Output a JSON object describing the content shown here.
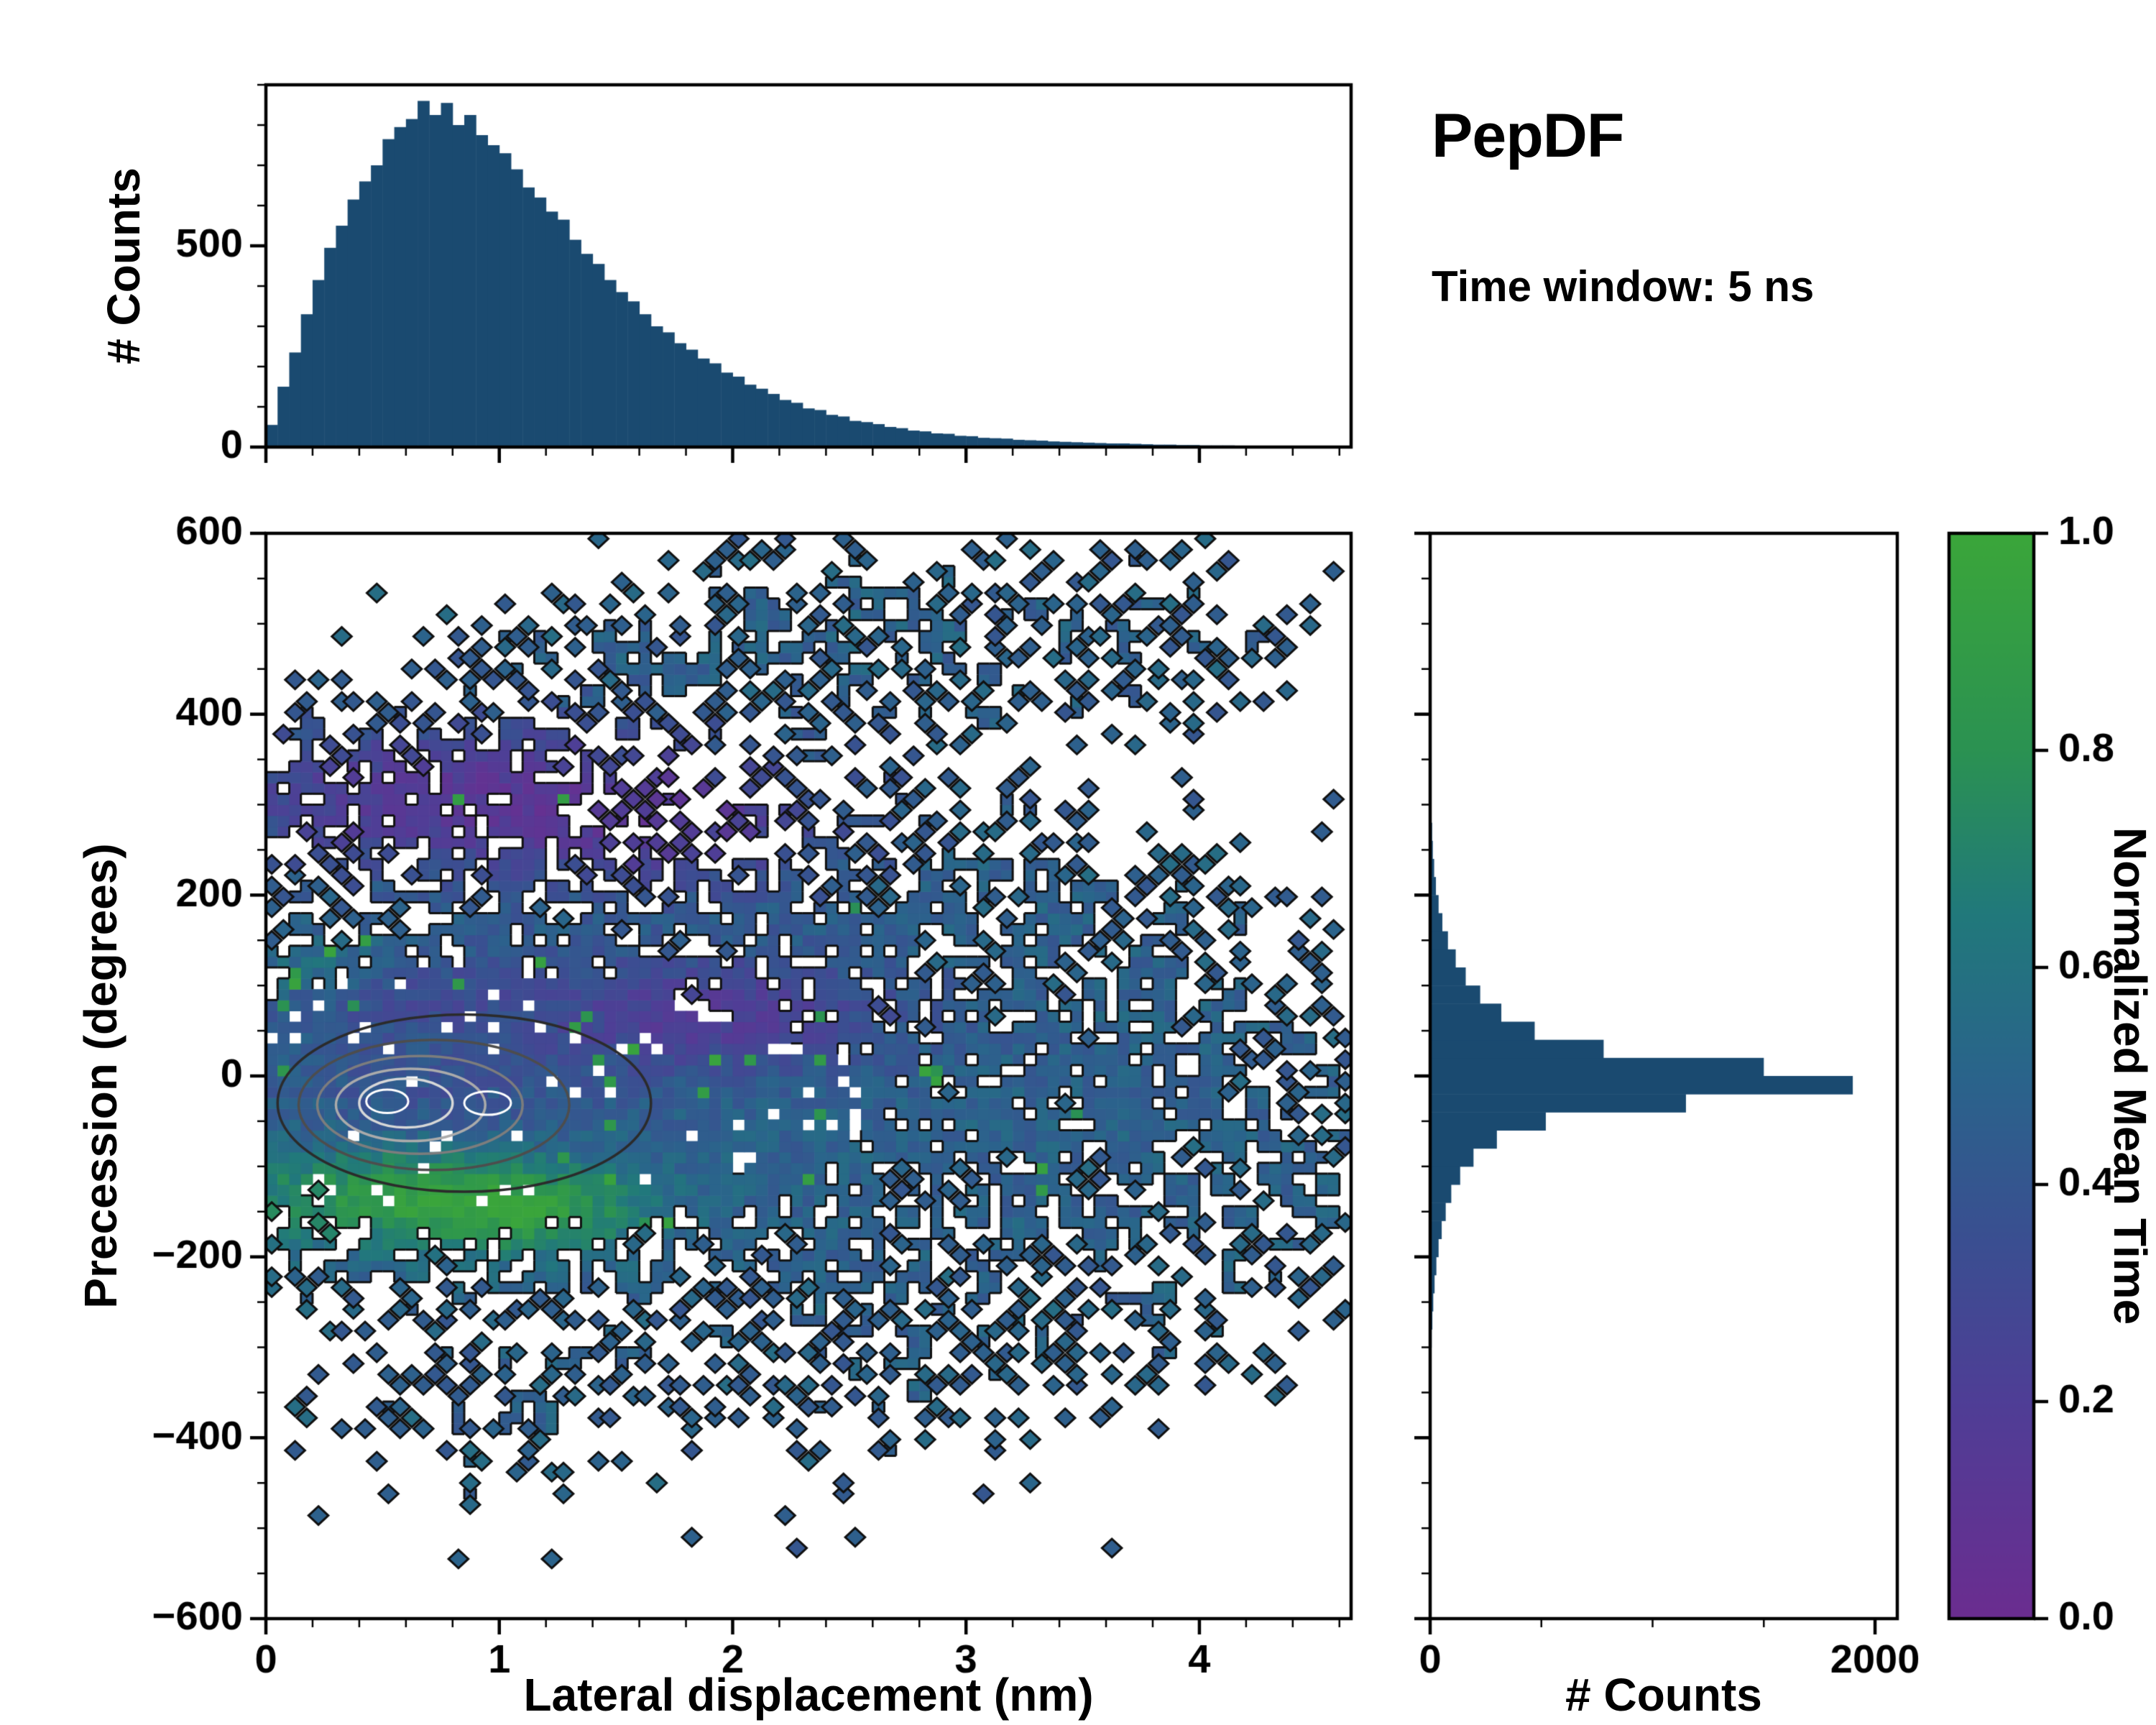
{
  "title": {
    "main": "PepDF",
    "subtitle": "Time window: 5 ns"
  },
  "colors": {
    "background": "#ffffff",
    "axis": "#000000",
    "hist_fill": "#1a4a70",
    "text": "#000000"
  },
  "colormap": {
    "label": "Normalized Mean Time",
    "ticks": [
      0,
      0.2,
      0.4,
      0.6,
      0.8,
      1
    ],
    "stops": [
      [
        0,
        "#6b2d90"
      ],
      [
        0.2,
        "#4f3e96"
      ],
      [
        0.35,
        "#3a4f91"
      ],
      [
        0.5,
        "#2a648b"
      ],
      [
        0.65,
        "#21797b"
      ],
      [
        0.8,
        "#2b9252"
      ],
      [
        1,
        "#3ba63a"
      ]
    ]
  },
  "chart_data": [
    {
      "id": "top_histogram",
      "type": "bar",
      "role": "marginal-x",
      "ylabel": "# Counts",
      "xlim": [
        0,
        4.65
      ],
      "ylim": [
        0,
        900
      ],
      "xticks": [
        0,
        1,
        2,
        3,
        4
      ],
      "yticks": [
        0,
        500
      ],
      "x_minor_step": 0.2,
      "y_minor_step": 100,
      "bin_start": 0,
      "bin_width": 0.05,
      "values": [
        55,
        150,
        235,
        330,
        415,
        495,
        550,
        615,
        660,
        700,
        765,
        795,
        815,
        860,
        825,
        855,
        800,
        825,
        775,
        750,
        730,
        690,
        645,
        620,
        585,
        565,
        515,
        480,
        455,
        415,
        385,
        362,
        330,
        300,
        285,
        258,
        242,
        220,
        208,
        185,
        175,
        155,
        145,
        132,
        117,
        110,
        96,
        92,
        80,
        76,
        65,
        62,
        57,
        50,
        47,
        41,
        39,
        34,
        33,
        28,
        27,
        23,
        22,
        21,
        18,
        17,
        16,
        14,
        13,
        12,
        11,
        10,
        9,
        9,
        8,
        7,
        6,
        6,
        5,
        5,
        4,
        4,
        4,
        3,
        3,
        3,
        2,
        2,
        2,
        2,
        1,
        1,
        1
      ]
    },
    {
      "id": "joint_heatmap",
      "type": "heatmap",
      "xlabel": "Lateral displacement (nm)",
      "ylabel": "Precession (degrees)",
      "color_label": "Normalized Mean Time",
      "xlim": [
        0,
        4.65
      ],
      "ylim": [
        -600,
        600
      ],
      "xticks": [
        0,
        1,
        2,
        3,
        4
      ],
      "yticks": [
        -600,
        -400,
        -200,
        0,
        200,
        400,
        600
      ],
      "x_minor_step": 0.2,
      "y_minor_step": 50,
      "cell_dx": 0.05,
      "cell_dy": 12,
      "seed": 12,
      "base_value": 0.48,
      "noise": 0.17,
      "speckle_green_prob": 0.02,
      "noise_floor": 0.003,
      "fill_cap": 0.96,
      "clusters": [
        {
          "cx": 0.7,
          "cy": -25,
          "sx": 0.55,
          "sy": 85,
          "amp": 3.0
        },
        {
          "cx": 0.3,
          "cy": -25,
          "sx": 0.45,
          "sy": 90,
          "amp": 1.5
        },
        {
          "cx": 1.5,
          "cy": -25,
          "sx": 0.7,
          "sy": 95,
          "amp": 1.6
        },
        {
          "cx": 2.4,
          "cy": -30,
          "sx": 0.8,
          "sy": 110,
          "amp": 0.9
        },
        {
          "cx": 3.3,
          "cy": -30,
          "sx": 0.9,
          "sy": 120,
          "amp": 0.45
        },
        {
          "cx": 4.1,
          "cy": -20,
          "sx": 0.7,
          "sy": 110,
          "amp": 0.3
        },
        {
          "cx": 0.55,
          "cy": 310,
          "sx": 0.5,
          "sy": 48,
          "amp": 0.9
        },
        {
          "cx": 1.15,
          "cy": 300,
          "sx": 0.35,
          "sy": 45,
          "amp": 0.6
        },
        {
          "cx": 0.2,
          "cy": 320,
          "sx": 0.25,
          "sy": 40,
          "amp": 0.5
        },
        {
          "cx": 1.45,
          "cy": 440,
          "sx": 0.45,
          "sy": 45,
          "amp": 0.55
        },
        {
          "cx": 2.1,
          "cy": 470,
          "sx": 0.5,
          "sy": 50,
          "amp": 0.4
        },
        {
          "cx": 2.9,
          "cy": 500,
          "sx": 0.7,
          "sy": 60,
          "amp": 0.35
        },
        {
          "cx": 3.6,
          "cy": 480,
          "sx": 0.5,
          "sy": 70,
          "amp": 0.25
        },
        {
          "cx": 2.3,
          "cy": 185,
          "sx": 0.75,
          "sy": 60,
          "amp": 0.65
        },
        {
          "cx": 3.2,
          "cy": 170,
          "sx": 0.6,
          "sy": 60,
          "amp": 0.35
        },
        {
          "cx": 0.9,
          "cy": 155,
          "sx": 0.5,
          "sy": 50,
          "amp": 0.45
        },
        {
          "cx": 1.9,
          "cy": -300,
          "sx": 1.1,
          "sy": 70,
          "amp": 0.28
        },
        {
          "cx": 1.0,
          "cy": -380,
          "sx": 0.4,
          "sy": 45,
          "amp": 0.22
        },
        {
          "cx": 2.9,
          "cy": -250,
          "sx": 0.8,
          "sy": 60,
          "amp": 0.25
        },
        {
          "cx": 3.8,
          "cy": -60,
          "sx": 0.5,
          "sy": 80,
          "amp": 0.35
        },
        {
          "cx": 2.6,
          "cy": 330,
          "sx": 0.4,
          "sy": 60,
          "amp": 0.25
        }
      ],
      "value_layers": [
        {
          "cx": 1.9,
          "cy": 70,
          "sx": 0.55,
          "sy": 45,
          "dv": -0.3
        },
        {
          "cx": 0.45,
          "cy": 95,
          "sx": 0.4,
          "sy": 30,
          "dv": -0.2
        },
        {
          "cx": 0.75,
          "cy": 310,
          "sx": 0.7,
          "sy": 60,
          "dv": -0.32
        },
        {
          "cx": 1.8,
          "cy": 280,
          "sx": 0.5,
          "sy": 55,
          "dv": -0.25
        },
        {
          "cx": 0.55,
          "cy": -130,
          "sx": 0.5,
          "sy": 38,
          "dv": 0.38
        },
        {
          "cx": 1.15,
          "cy": -150,
          "sx": 0.35,
          "sy": 32,
          "dv": 0.3
        },
        {
          "cx": 0.25,
          "cy": 110,
          "sx": 0.25,
          "sy": 25,
          "dv": 0.22
        },
        {
          "cx": 0.7,
          "cy": -20,
          "sx": 0.5,
          "sy": 55,
          "dv": -0.1
        }
      ],
      "contours": [
        {
          "cx": 0.85,
          "cy": -30,
          "rx": 0.8,
          "ry": 98,
          "color": "#2b2b2b",
          "lw": 3.5
        },
        {
          "cx": 0.72,
          "cy": -32,
          "rx": 0.58,
          "ry": 72,
          "color": "#4d4d4d",
          "lw": 3.5
        },
        {
          "cx": 0.66,
          "cy": -32,
          "rx": 0.44,
          "ry": 54,
          "color": "#7d7d7d",
          "lw": 3.5
        },
        {
          "cx": 0.62,
          "cy": -32,
          "rx": 0.32,
          "ry": 40,
          "color": "#ababab",
          "lw": 3.5
        },
        {
          "cx": 0.6,
          "cy": -30,
          "rx": 0.2,
          "ry": 27,
          "color": "#d8d8d8",
          "lw": 3.5
        },
        {
          "cx": 0.52,
          "cy": -28,
          "rx": 0.09,
          "ry": 13,
          "color": "#ffffff",
          "lw": 3
        },
        {
          "cx": 0.95,
          "cy": -30,
          "rx": 0.1,
          "ry": 13,
          "color": "#ffffff",
          "lw": 3
        }
      ]
    },
    {
      "id": "right_histogram",
      "type": "bar",
      "role": "marginal-y",
      "orientation": "horizontal",
      "xlabel": "# Counts",
      "xlim": [
        0,
        2100
      ],
      "ylim": [
        -600,
        600
      ],
      "xticks": [
        0,
        2000
      ],
      "yticks": [
        -600,
        -400,
        -200,
        0,
        200,
        400,
        600
      ],
      "x_minor_step": 500,
      "y_minor_step": 50,
      "bin_start": -600,
      "bin_width": 20,
      "values": [
        0,
        0,
        0,
        0,
        0,
        0,
        0,
        0,
        1,
        1,
        2,
        2,
        3,
        4,
        5,
        7,
        10,
        14,
        20,
        28,
        38,
        52,
        70,
        95,
        135,
        195,
        300,
        520,
        1150,
        1900,
        1500,
        780,
        470,
        320,
        225,
        160,
        115,
        80,
        55,
        38,
        26,
        18,
        12,
        9,
        6,
        5,
        4,
        3,
        2,
        2,
        3,
        5,
        6,
        5,
        3,
        2,
        1,
        1,
        1,
        0
      ]
    }
  ]
}
